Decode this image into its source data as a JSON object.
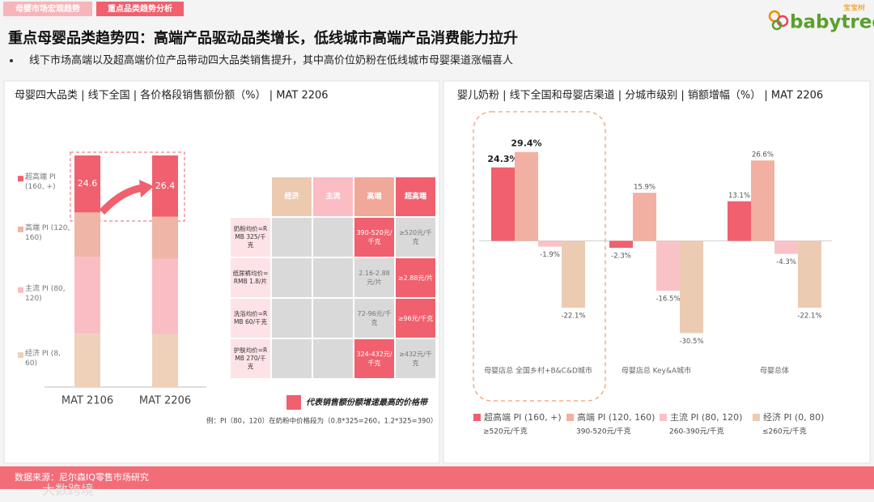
{
  "header": {
    "tabs": [
      "母婴市场宏观趋势",
      "重点品类趋势分析"
    ],
    "active_tab": 1,
    "logo_cn": "宝宝树",
    "logo": "babytree",
    "title": "重点母婴品类趋势四：高端产品驱动品类增长，低线城市高端产品消费能力拉升",
    "bullet": "线下市场高端以及超高端价位产品带动四大品类销售提升，其中高价位奶粉在低线城市母婴渠道涨幅喜人"
  },
  "chart_data": [
    {
      "type": "stacked_bar",
      "title": "母婴四大品类 | 线下全国 | 各价格段销售额份额（%） | MAT 2206",
      "categories": [
        "MAT 2106",
        "MAT 2206"
      ],
      "ylim": [
        0,
        100
      ],
      "series": [
        {
          "name": "超高端 PI (160, +)",
          "color": "#f0606e",
          "values": [
            24.6,
            26.4
          ],
          "data_labels": true
        },
        {
          "name": "高端 PI (120, 160)",
          "color": "#efb5a6",
          "values": [
            19.2,
            18.2
          ]
        },
        {
          "name": "主流 PI (80, 120)",
          "color": "#fbbdc4",
          "values": [
            33.2,
            32.5
          ]
        },
        {
          "name": "经济 PI (8, 60)",
          "color": "#efd0b9",
          "values": [
            23,
            22.9
          ]
        }
      ]
    },
    {
      "type": "bar",
      "title": "婴儿奶粉 | 线下全国和母婴店渠道 | 分城市级别 | 销额增幅（%） | MAT 2206",
      "categories": [
        "母婴店总 全国乡村+B&C&D城市",
        "母婴店总 Key&A城市",
        "母婴总体"
      ],
      "ylim": [
        -32,
        32
      ],
      "highlight_category": 0,
      "series": [
        {
          "name": "超高端 PI (160, +)",
          "note": "≥520元/千克",
          "color": "#f0606e",
          "values": [
            24.3,
            -2.3,
            13.1
          ],
          "value_labels": [
            "24.3%",
            "-2.3%",
            "13.1%"
          ]
        },
        {
          "name": "高端 PI (120, 160)",
          "note": "390-520元/千克",
          "color": "#f2b0a2",
          "values": [
            29.4,
            15.9,
            26.6
          ],
          "value_labels": [
            "29.4%",
            "15.9%",
            "26.6%"
          ]
        },
        {
          "name": "主流 PI (80, 120)",
          "note": "260-390元/千克",
          "color": "#f9c2c6",
          "values": [
            -1.9,
            -16.5,
            -4.3
          ],
          "value_labels": [
            "-1.9%",
            "-16.5%",
            "-4.3%"
          ]
        },
        {
          "name": "经济 PI (0, 80)",
          "note": "≤260元/千克",
          "color": "#eccbb3",
          "values": [
            -22.1,
            -30.5,
            -22.1
          ],
          "value_labels": [
            "-22.1%",
            "-30.5%",
            "-22.1%"
          ]
        }
      ]
    }
  ],
  "table": {
    "columns": [
      "经济",
      "主流",
      "高端",
      "超高端"
    ],
    "column_colors": [
      "#eccab0",
      "#fbbcc4",
      "#f0a898",
      "#f0606e"
    ],
    "price_columns_from": 2,
    "rows": [
      {
        "label": "奶粉均价=RMB 325/千克",
        "values": [
          "390-520元/千克",
          "≥520元/千克"
        ],
        "fastest": 0
      },
      {
        "label": "纸尿裤均价=RMB 1.8/片",
        "values": [
          "2.16-2.88元/片",
          "≥2.88元/片"
        ],
        "fastest": 1
      },
      {
        "label": "洗浴均价=RMB 60/千克",
        "values": [
          "72-96元/千克",
          "≥96元/千克"
        ],
        "fastest": 1
      },
      {
        "label": "护肤均价=RMB 270/千克",
        "values": [
          "324-432元/千克",
          "≥432元/千克"
        ],
        "fastest": 0
      }
    ]
  },
  "legend_note": "代表销售额份额增速最高的价格带",
  "example": "例：PI（80，120）在奶粉中价格段为（0.8*325=260，1.2*325=390）",
  "source": "数据来源：尼尔森IQ零售市场研究",
  "watermark": "大数跨境"
}
